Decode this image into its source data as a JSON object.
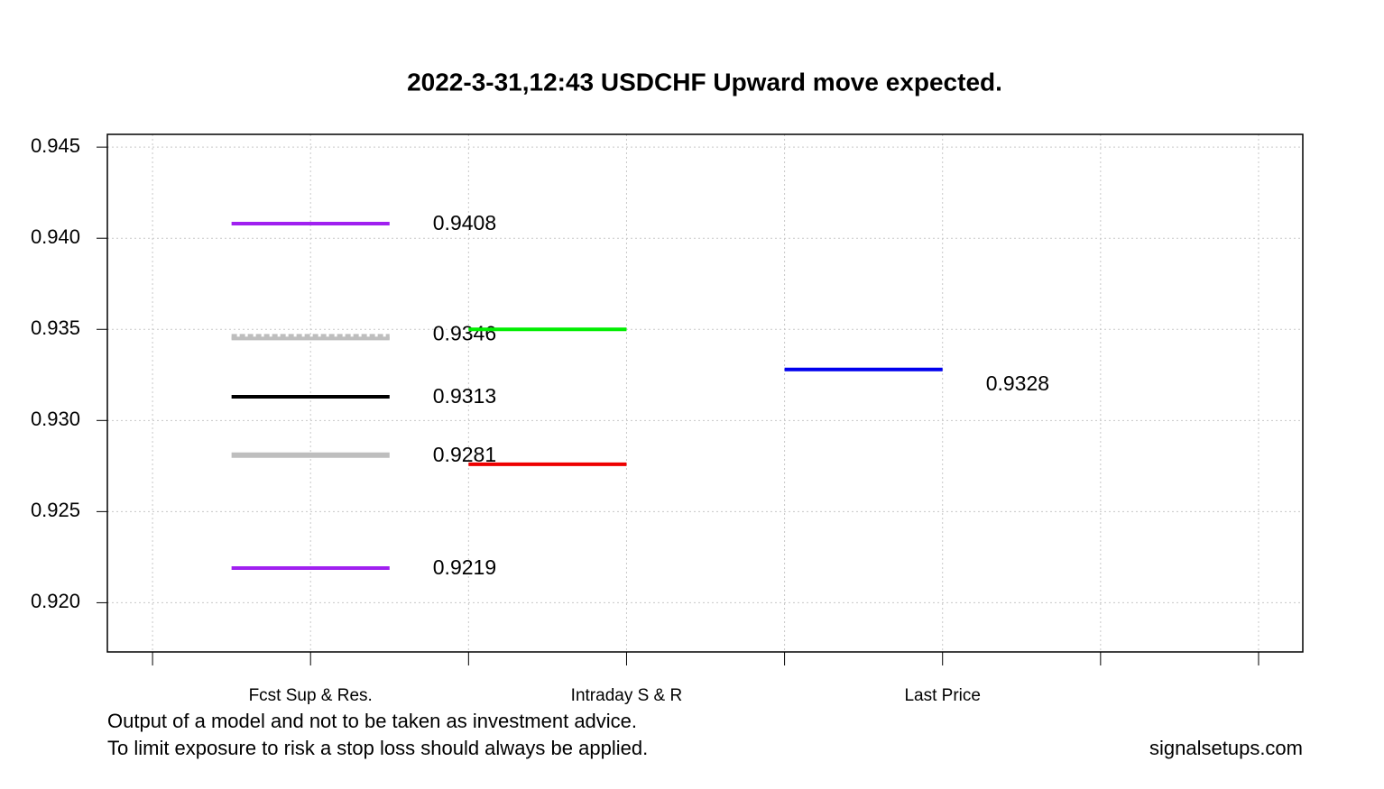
{
  "chart_data": {
    "type": "segments",
    "title": "2022-3-31,12:43 USDCHF Upward move expected.",
    "categories": [
      null,
      "Fcst Sup & Res.",
      null,
      "Intraday S & R",
      null,
      "Last Price",
      null,
      null
    ],
    "xlim": [
      0.714,
      8.28
    ],
    "ylim": [
      0.9173,
      0.9457
    ],
    "yticks": [
      {
        "value": 0.92,
        "label": "0.920"
      },
      {
        "value": 0.925,
        "label": "0.925"
      },
      {
        "value": 0.93,
        "label": "0.930"
      },
      {
        "value": 0.935,
        "label": "0.935"
      },
      {
        "value": 0.94,
        "label": "0.940"
      },
      {
        "value": 0.945,
        "label": "0.945"
      }
    ],
    "grid": true,
    "segments": [
      {
        "x": [
          1.5,
          2.5
        ],
        "y": 0.9408,
        "color": "#a020f0",
        "style": "normal",
        "labeled": true
      },
      {
        "x": [
          1.5,
          2.5
        ],
        "y": 0.9346,
        "color": "#bebebe",
        "style": "dashed",
        "labeled": true
      },
      {
        "x": [
          1.5,
          2.5
        ],
        "y": 0.9313,
        "color": "#000000",
        "style": "normal",
        "labeled": true
      },
      {
        "x": [
          1.5,
          2.5
        ],
        "y": 0.9281,
        "color": "#bebebe",
        "style": "thick",
        "labeled": true
      },
      {
        "x": [
          1.5,
          2.5
        ],
        "y": 0.9219,
        "color": "#a020f0",
        "style": "normal",
        "labeled": true
      },
      {
        "x": [
          3,
          4
        ],
        "y": 0.935,
        "color": "#00ee00",
        "style": "normal",
        "labeled": false
      },
      {
        "x": [
          3,
          4
        ],
        "y": 0.9276,
        "color": "#ee0000",
        "style": "normal",
        "labeled": false
      },
      {
        "x": [
          5,
          6
        ],
        "y": 0.9328,
        "color": "#0000ee",
        "style": "normal",
        "labeled": true
      }
    ],
    "notes": [
      "Output of a model and not to be taken as investment advice.",
      "To limit exposure to risk a stop loss should always be applied."
    ],
    "source": "signalsetups.com"
  }
}
